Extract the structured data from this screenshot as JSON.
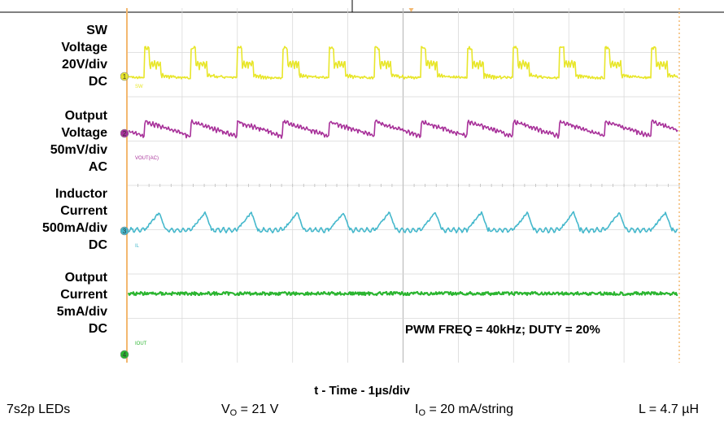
{
  "channel_labels": [
    {
      "lines": [
        "SW",
        "Voltage",
        "20V/div",
        "DC"
      ]
    },
    {
      "lines": [
        "Output",
        "Voltage",
        "50mV/div",
        "AC"
      ]
    },
    {
      "lines": [
        "Inductor",
        "Current",
        "500mA/div",
        "DC"
      ]
    },
    {
      "lines": [
        "Output",
        "Current",
        "5mA/div",
        "DC"
      ]
    }
  ],
  "scope_tags": [
    "SW",
    "VOUT(AC)",
    "IL",
    "IOUT"
  ],
  "channel_numbers": [
    "1",
    "2",
    "3",
    "4"
  ],
  "annotation": "PWM FREQ = 40kHz; DUTY = 20%",
  "x_axis_label": "t - Time - 1µs/div",
  "conditions": {
    "leds": "7s2p LEDs",
    "vo_prefix": "V",
    "vo_sub": "O",
    "vo_suffix": " = 21 V",
    "io_prefix": "I",
    "io_sub": "O",
    "io_suffix": " = 20 mA/string",
    "inductance": "L = 4.7 µH"
  },
  "colors": {
    "sw": "#e8e62a",
    "vout": "#a8329a",
    "il": "#45b8cc",
    "iout": "#2bb530",
    "grid": "#d9d9d9",
    "frame": "#f3b870"
  },
  "chart_data": {
    "type": "line",
    "x_unit": "µs",
    "x_per_div": 1,
    "x_divisions": 10,
    "switching_cycles_shown": 12,
    "series": [
      {
        "name": "SW",
        "scale": "20V/div",
        "coupling": "DC"
      },
      {
        "name": "VOUT(AC)",
        "scale": "50mV/div",
        "coupling": "AC"
      },
      {
        "name": "IL",
        "scale": "500mA/div",
        "coupling": "DC"
      },
      {
        "name": "IOUT",
        "scale": "5mA/div",
        "coupling": "DC"
      }
    ]
  }
}
